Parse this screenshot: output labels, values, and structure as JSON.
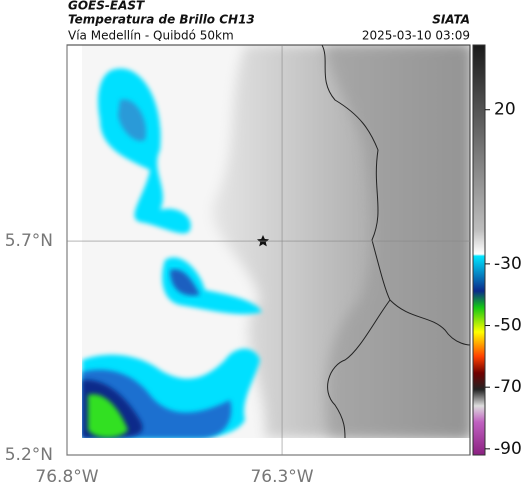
{
  "header": {
    "source": "GOES-EAST",
    "title": "Temperatura de Brillo CH13",
    "agency": "SIATA",
    "subtitle": "Vía Medellín - Quibdó 50km",
    "timestamp": "2025-03-10 03:09"
  },
  "map": {
    "xlim": [
      -76.8,
      -75.863
    ],
    "ylim": [
      5.2,
      6.158
    ],
    "xticks": [
      {
        "value": -76.8,
        "label": "76.8°W"
      },
      {
        "value": -76.3,
        "label": "76.3°W"
      }
    ],
    "yticks": [
      {
        "value": 5.7,
        "label": "5.7°N"
      },
      {
        "value": 5.2,
        "label": "5.2°N"
      }
    ]
  },
  "colorbar": {
    "lim": [
      -92,
      41
    ],
    "ticks": [
      20,
      -30,
      -50,
      -70,
      -90
    ]
  }
}
